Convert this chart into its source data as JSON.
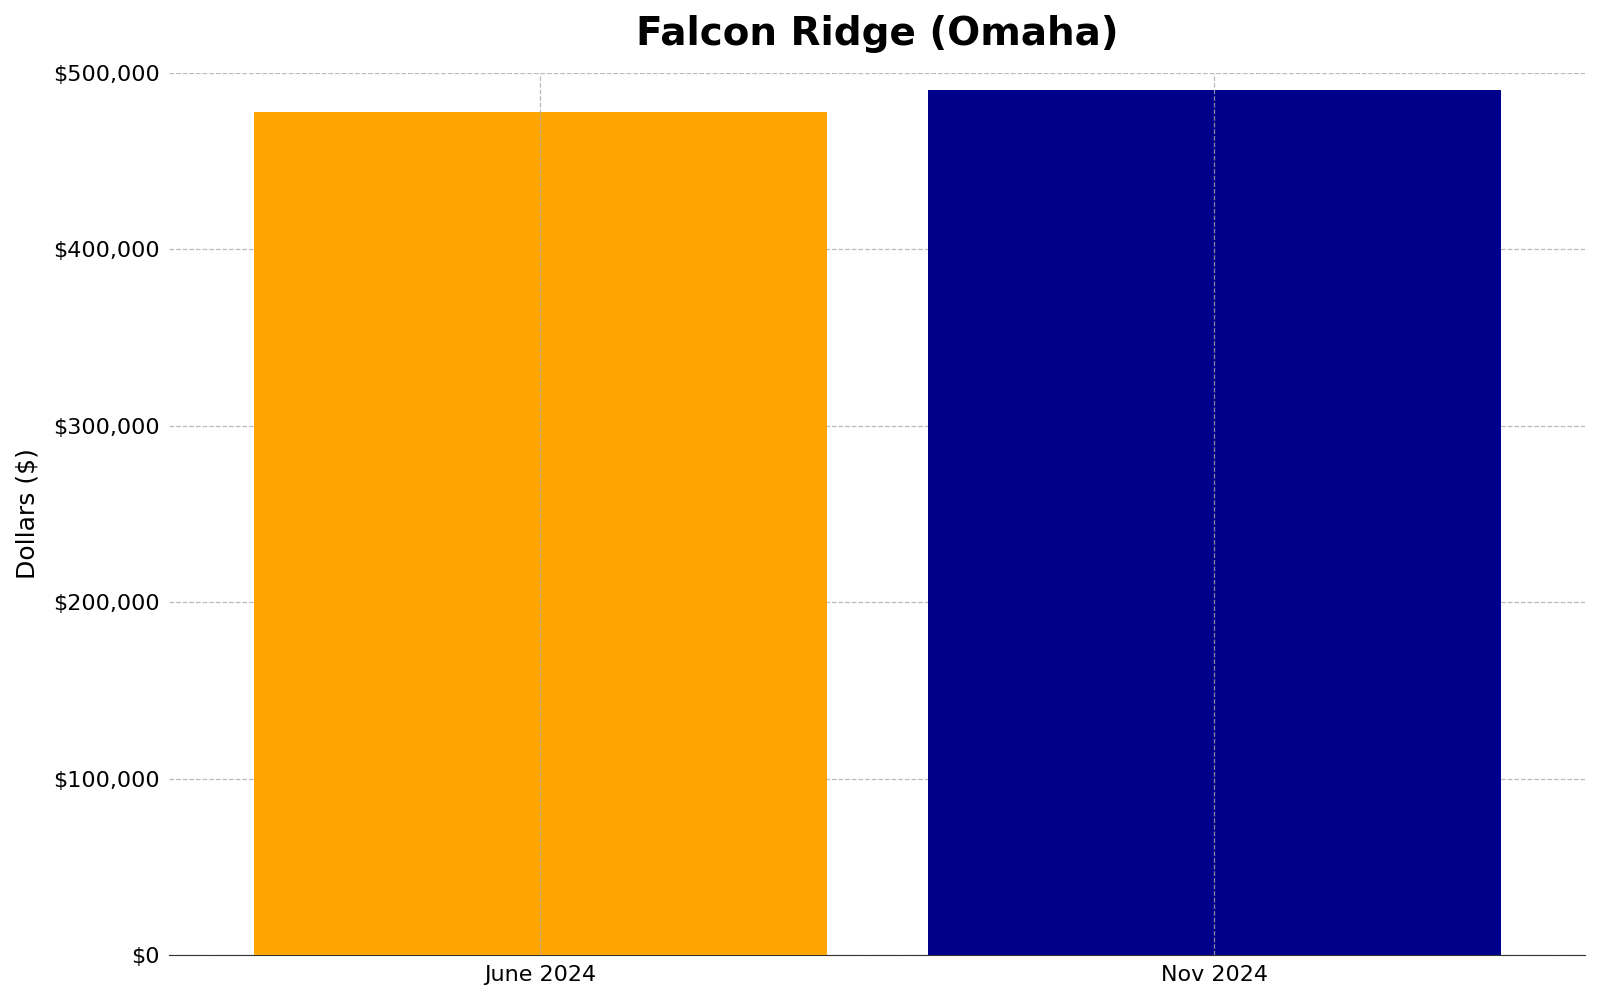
{
  "title": "Falcon Ridge (Omaha)",
  "categories": [
    "June 2024",
    "Nov 2024"
  ],
  "values": [
    478000,
    490000
  ],
  "bar_colors": [
    "#FFA500",
    "#00008B"
  ],
  "ylabel": "Dollars ($)",
  "ylim": [
    0,
    500000
  ],
  "yticks": [
    0,
    100000,
    200000,
    300000,
    400000,
    500000
  ],
  "ytick_labels": [
    "$0",
    "$100,000",
    "$200,000",
    "$300,000",
    "$400,000",
    "$500,000"
  ],
  "background_color": "#ffffff",
  "title_fontsize": 28,
  "title_fontweight": "bold",
  "axis_label_fontsize": 18,
  "tick_fontsize": 16,
  "bar_width": 0.85,
  "grid_color": "#aaaaaa",
  "grid_linestyle": "--",
  "grid_linewidth": 0.9,
  "grid_alpha": 0.8,
  "xlim": [
    -0.55,
    1.55
  ]
}
